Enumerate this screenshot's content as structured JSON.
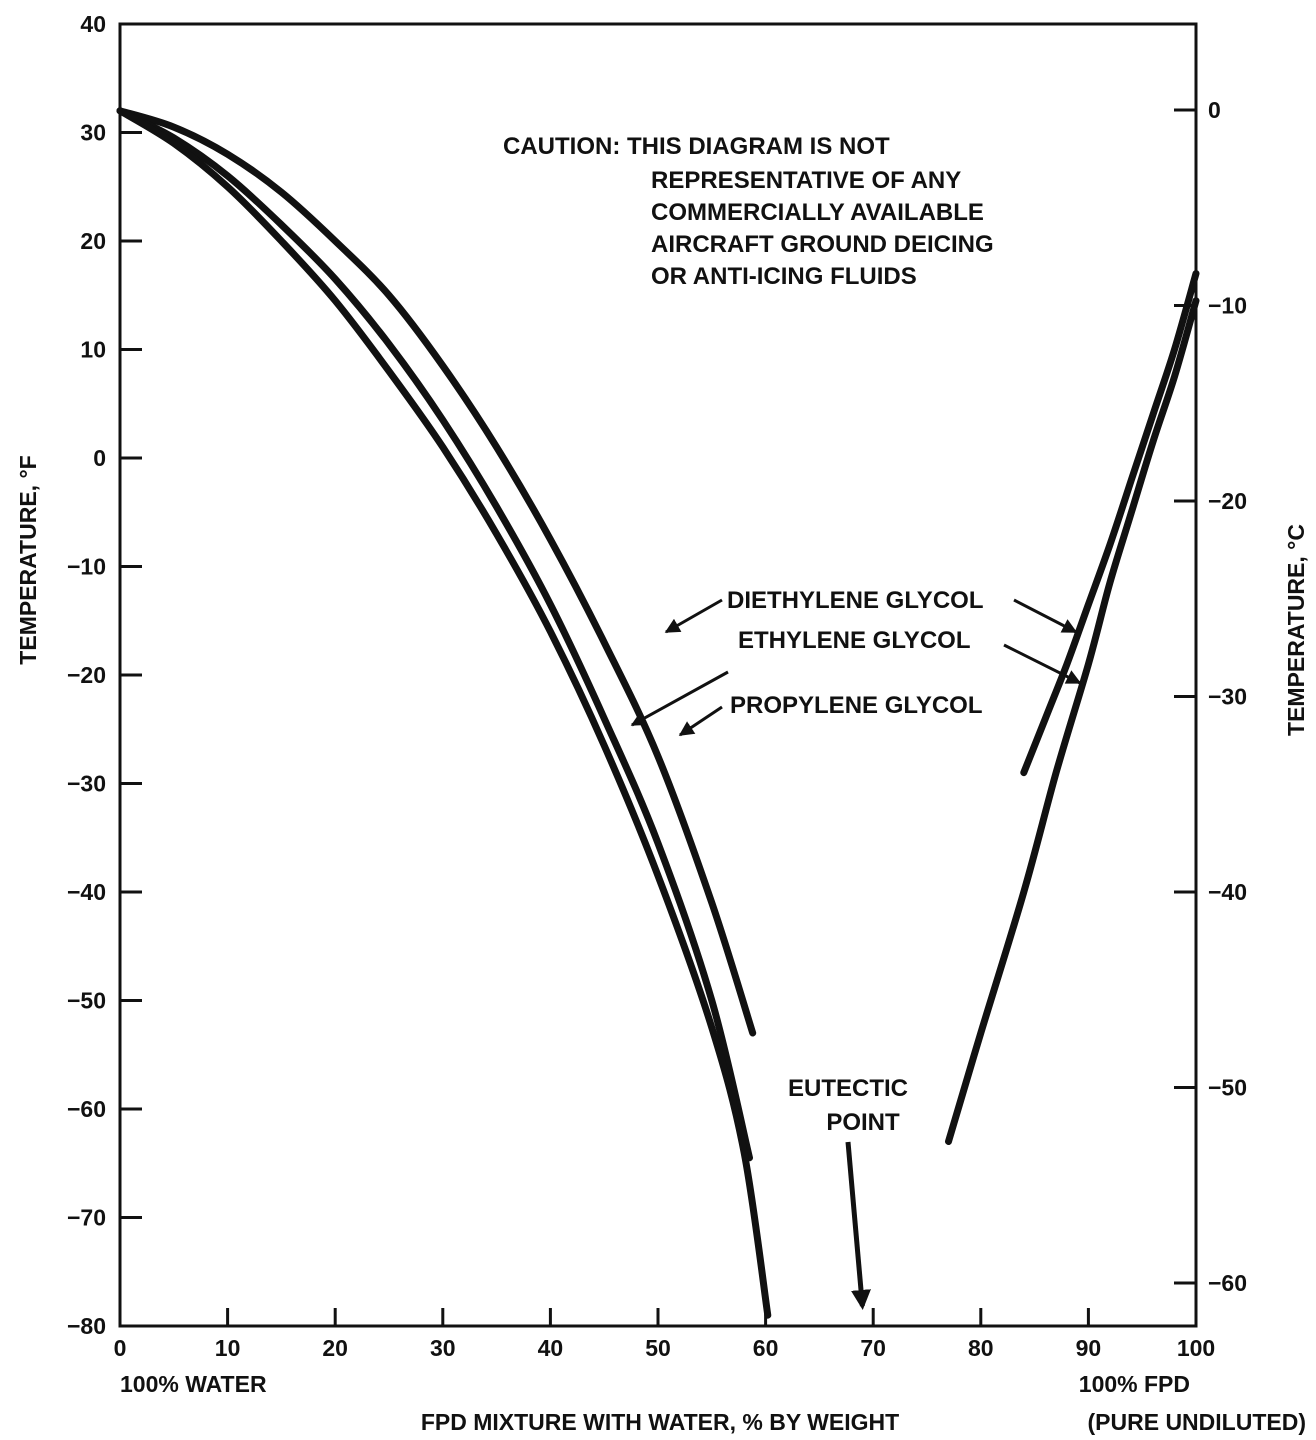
{
  "chart_data": {
    "type": "line",
    "title": "",
    "xlabel": "FPD MIXTURE WITH WATER, % BY WEIGHT",
    "ylabel": "TEMPERATURE, °F",
    "y2label": "TEMPERATURE, °C",
    "xlim": [
      0,
      100
    ],
    "ylim": [
      -80,
      40
    ],
    "y2lim": [
      -62.2,
      4.4
    ],
    "x_ticks": [
      0,
      10,
      20,
      30,
      40,
      50,
      60,
      70,
      80,
      90,
      100
    ],
    "y_ticks": [
      40,
      30,
      20,
      10,
      0,
      -10,
      -20,
      -30,
      -40,
      -50,
      -60,
      -70,
      -80
    ],
    "y2_ticks": [
      0,
      -10,
      -20,
      -30,
      -40,
      -50,
      -60
    ],
    "x_tick_labels": [
      "0",
      "10",
      "20",
      "30",
      "40",
      "50",
      "60",
      "70",
      "80",
      "90",
      "100"
    ],
    "y_tick_labels": [
      "40",
      "30",
      "20",
      "10",
      "0",
      "−10",
      "−20",
      "−30",
      "−40",
      "−50",
      "−60",
      "−70",
      "−80"
    ],
    "y2_tick_labels": [
      "0",
      "−10",
      "−20",
      "−30",
      "−40",
      "−50",
      "−60"
    ],
    "x_end_labels": {
      "left": "100% WATER",
      "right_line1": "100% FPD",
      "right_line2": "(PURE UNDILUTED)"
    },
    "grid": false,
    "caution_lines": [
      "CAUTION: THIS DIAGRAM IS NOT",
      "REPRESENTATIVE OF ANY",
      "COMMERCIALLY AVAILABLE",
      "AIRCRAFT GROUND DEICING",
      "OR ANTI-ICING FLUIDS"
    ],
    "eutectic_label": [
      "EUTECTIC",
      "POINT"
    ],
    "eutectic_x": 69,
    "series": [
      {
        "name": "DIETHYLENE GLYCOL",
        "segments": [
          [
            [
              0,
              32
            ],
            [
              5,
              30.5
            ],
            [
              10,
              28
            ],
            [
              15,
              24.5
            ],
            [
              20,
              20
            ],
            [
              25,
              15
            ],
            [
              30,
              8.5
            ],
            [
              35,
              1
            ],
            [
              40,
              -7.5
            ],
            [
              45,
              -17
            ],
            [
              50,
              -27.5
            ],
            [
              55,
              -41
            ],
            [
              58.8,
              -53
            ]
          ],
          [
            [
              84,
              -29
            ],
            [
              86,
              -24
            ],
            [
              88,
              -19
            ],
            [
              90,
              -13.5
            ],
            [
              92,
              -8
            ],
            [
              94,
              -2
            ],
            [
              96,
              4
            ],
            [
              98,
              10
            ],
            [
              100,
              17
            ]
          ]
        ]
      },
      {
        "name": "ETHYLENE GLYCOL",
        "segments": [
          [
            [
              0,
              32
            ],
            [
              5,
              29.5
            ],
            [
              10,
              26
            ],
            [
              15,
              21.5
            ],
            [
              20,
              16.5
            ],
            [
              25,
              10.5
            ],
            [
              30,
              3.5
            ],
            [
              35,
              -4.5
            ],
            [
              40,
              -13.5
            ],
            [
              45,
              -24
            ],
            [
              50,
              -35.5
            ],
            [
              55,
              -50
            ],
            [
              58.5,
              -64.5
            ]
          ]
        ]
      },
      {
        "name": "PROPYLENE GLYCOL",
        "segments": [
          [
            [
              0,
              32
            ],
            [
              5,
              29
            ],
            [
              10,
              25
            ],
            [
              15,
              20
            ],
            [
              20,
              14.5
            ],
            [
              25,
              8
            ],
            [
              30,
              1
            ],
            [
              35,
              -7
            ],
            [
              40,
              -16
            ],
            [
              45,
              -26.5
            ],
            [
              50,
              -38.5
            ],
            [
              55,
              -52.5
            ],
            [
              58,
              -64
            ],
            [
              60.2,
              -79
            ]
          ],
          [
            [
              77,
              -63
            ],
            [
              80,
              -53
            ],
            [
              84,
              -40
            ],
            [
              87,
              -29
            ],
            [
              90,
              -19
            ],
            [
              92,
              -11.5
            ],
            [
              94,
              -5
            ],
            [
              96,
              1.5
            ],
            [
              98,
              7.5
            ],
            [
              100,
              14.5
            ]
          ]
        ]
      }
    ],
    "annotations": [
      {
        "text": "DIETHYLENE GLYCOL"
      },
      {
        "text": "ETHYLENE GLYCOL"
      },
      {
        "text": "PROPYLENE GLYCOL"
      }
    ]
  }
}
